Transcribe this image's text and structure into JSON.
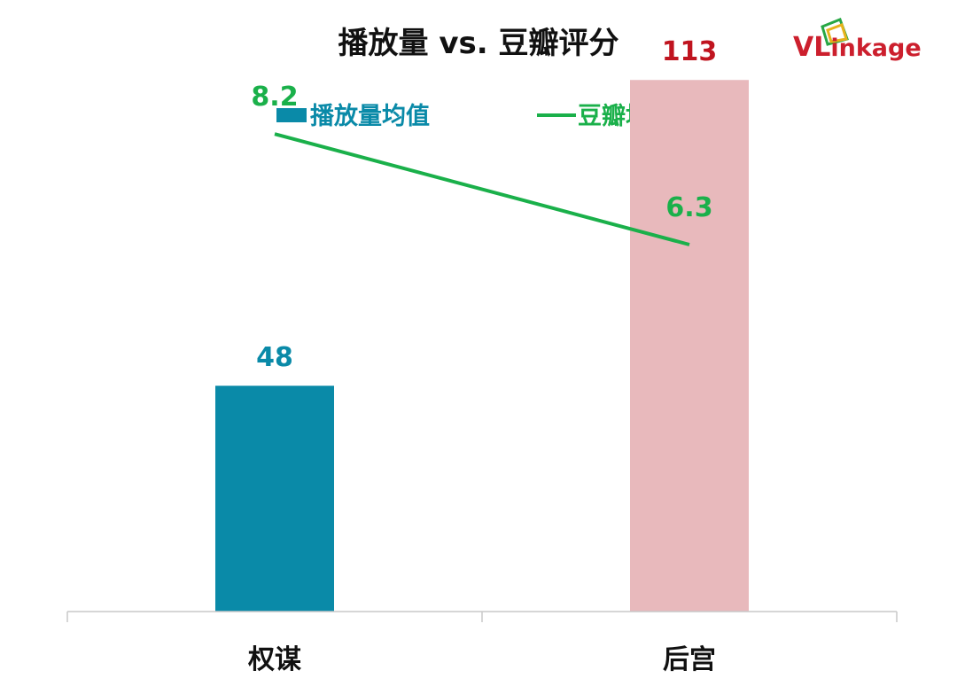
{
  "logo": {
    "text_prefix": "VL",
    "text_rest": "inkage",
    "colors": {
      "red": "#cc1f2d",
      "green": "#28a745",
      "yellow": "#e7b21b"
    }
  },
  "chart_data": {
    "type": "bar+line",
    "title": "播放量 vs. 豆瓣评分",
    "categories": [
      "权谋",
      "后宫"
    ],
    "bar_series": {
      "name": "播放量均值",
      "values": [
        48,
        113
      ],
      "colors": [
        "#0a8aa8",
        "#e8b9bc"
      ],
      "label_colors": [
        "#0a8aa8",
        "#c0141f"
      ],
      "legend_color": "#0a8aa8",
      "ylim": [
        0,
        130
      ]
    },
    "line_series": {
      "name": "豆瓣均值",
      "values": [
        8.2,
        6.3
      ],
      "color": "#1ab04a",
      "ylim": [
        0,
        10.5
      ]
    },
    "legend_placement": "top",
    "grid": false
  }
}
